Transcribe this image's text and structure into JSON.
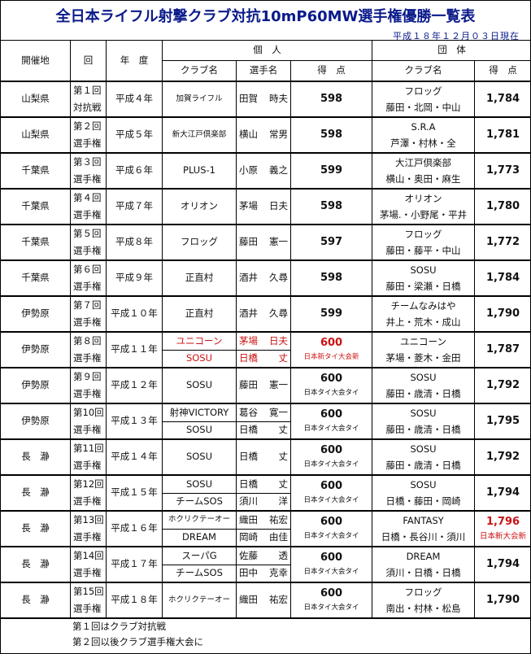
{
  "title": "全日本ライフル射撃クラブ対抗10mP60MW選手権優勝一覧表",
  "as_of": "平成１８年１２月０３日現在",
  "colors": {
    "title": "#0a1a8a",
    "record": "#cc1111"
  },
  "headers": {
    "venue": "開催地",
    "round": "回",
    "year": "年　度",
    "individual": "個　人",
    "team": "団　体",
    "club": "クラブ名",
    "player": "選手名",
    "score": "得　点",
    "team_club": "クラブ名",
    "team_score": "得　点"
  },
  "rows": [
    {
      "venue": "山梨県",
      "round": [
        "第１回",
        "対抗戦"
      ],
      "year": "平成４年",
      "ind": [
        {
          "club": "加賀ライフル",
          "small": true,
          "name": [
            "田賀",
            "時夫"
          ]
        }
      ],
      "score": "598",
      "note": "",
      "team_club": "フロッグ",
      "members": "藤田・北岡・中山",
      "team_score": "1,784"
    },
    {
      "venue": "山梨県",
      "round": [
        "第２回",
        "選手権"
      ],
      "year": "平成５年",
      "ind": [
        {
          "club": "新大江戸倶楽部",
          "small": true,
          "name": [
            "横山",
            "常男"
          ]
        }
      ],
      "score": "598",
      "note": "",
      "team_club": "S.R.A",
      "members": "芦澤・村林・全",
      "team_score": "1,781"
    },
    {
      "venue": "千葉県",
      "round": [
        "第３回",
        "選手権"
      ],
      "year": "平成６年",
      "ind": [
        {
          "club": "PLUS-1",
          "name": [
            "小原",
            "義之"
          ]
        }
      ],
      "score": "599",
      "note": "",
      "team_club": "大江戸倶楽部",
      "members": "横山・奥田・麻生",
      "team_score": "1,773"
    },
    {
      "venue": "千葉県",
      "round": [
        "第４回",
        "選手権"
      ],
      "year": "平成７年",
      "ind": [
        {
          "club": "オリオン",
          "name": [
            "茅場",
            "日夫"
          ]
        }
      ],
      "score": "598",
      "note": "",
      "team_club": "オリオン",
      "members": "茅場.・小野尾・平井",
      "team_score": "1,780"
    },
    {
      "venue": "千葉県",
      "round": [
        "第５回",
        "選手権"
      ],
      "year": "平成８年",
      "ind": [
        {
          "club": "フロッグ",
          "name": [
            "藤田",
            "憲一"
          ]
        }
      ],
      "score": "597",
      "note": "",
      "team_club": "フロッグ",
      "members": "藤田・藤平・中山",
      "team_score": "1,772"
    },
    {
      "venue": "千葉県",
      "round": [
        "第６回",
        "選手権"
      ],
      "year": "平成９年",
      "ind": [
        {
          "club": "正直村",
          "name": [
            "酒井",
            "久尋"
          ]
        }
      ],
      "score": "598",
      "note": "",
      "team_club": "SOSU",
      "members": "藤田・梁瀬・日橋",
      "team_score": "1,784"
    },
    {
      "venue": "伊勢原",
      "round": [
        "第７回",
        "選手権"
      ],
      "year": "平成１０年",
      "ind": [
        {
          "club": "正直村",
          "name": [
            "酒井",
            "久尋"
          ]
        }
      ],
      "score": "599",
      "note": "",
      "team_club": "チームなみはや",
      "members": "井上・荒木・成山",
      "team_score": "1,790"
    },
    {
      "venue": "伊勢原",
      "round": [
        "第８回",
        "選手権"
      ],
      "year": "平成１１年",
      "ind": [
        {
          "club": "ユニコーン",
          "name": [
            "茅場",
            "日夫"
          ]
        },
        {
          "club": "SOSU",
          "name": [
            "日橋",
            "丈"
          ]
        }
      ],
      "score": "600",
      "note": "日本新タイ大会新",
      "ind_record": true,
      "team_club": "ユニコーン",
      "members": "茅場・菱木・金田",
      "team_score": "1,787"
    },
    {
      "venue": "伊勢原",
      "round": [
        "第９回",
        "選手権"
      ],
      "year": "平成１２年",
      "ind": [
        {
          "club": "SOSU",
          "name": [
            "藤田",
            "憲一"
          ]
        }
      ],
      "score": "600",
      "note": "日本タイ大会タイ",
      "team_club": "SOSU",
      "members": "藤田・歳清・日橋",
      "team_score": "1,792"
    },
    {
      "venue": "伊勢原",
      "round": [
        "第10回",
        "選手権"
      ],
      "year": "平成１３年",
      "ind": [
        {
          "club": "射神VICTORY",
          "name": [
            "葛谷",
            "寛一"
          ]
        },
        {
          "club": "SOSU",
          "name": [
            "日橋",
            "丈"
          ]
        }
      ],
      "score": "600",
      "note": "日本タイ大会タイ",
      "team_club": "SOSU",
      "members": "藤田・歳清・日橋",
      "team_score": "1,795"
    },
    {
      "venue": "長　瀞",
      "round": [
        "第11回",
        "選手権"
      ],
      "year": "平成１４年",
      "ind": [
        {
          "club": "SOSU",
          "name": [
            "日橋",
            "丈"
          ]
        }
      ],
      "score": "600",
      "note": "日本タイ大会タイ",
      "team_club": "SOSU",
      "members": "藤田・歳清・日橋",
      "team_score": "1,792"
    },
    {
      "venue": "長　瀞",
      "round": [
        "第12回",
        "選手権"
      ],
      "year": "平成１５年",
      "ind": [
        {
          "club": "SOSU",
          "name": [
            "日橋",
            "丈"
          ]
        },
        {
          "club": "チームSOS",
          "name": [
            "須川",
            "洋"
          ]
        }
      ],
      "score": "600",
      "note": "日本タイ大会タイ",
      "team_club": "SOSU",
      "members": "日橋・藤田・岡崎",
      "team_score": "1,794"
    },
    {
      "venue": "長　瀞",
      "round": [
        "第13回",
        "選手権"
      ],
      "year": "平成１６年",
      "ind": [
        {
          "club": "ホクリクテーオー",
          "small": true,
          "name": [
            "織田",
            "祐宏"
          ]
        },
        {
          "club": "DREAM",
          "name": [
            "岡崎",
            "由佳"
          ]
        }
      ],
      "score": "600",
      "note": "日本タイ大会タイ",
      "team_club": "FANTASY",
      "members": "日橋・長谷川・須川",
      "team_score": "1,796",
      "team_note": "日本新大会新",
      "team_record": true
    },
    {
      "venue": "長　瀞",
      "round": [
        "第14回",
        "選手権"
      ],
      "year": "平成１７年",
      "ind": [
        {
          "club": "スーパG",
          "name": [
            "佐藤",
            "透"
          ]
        },
        {
          "club": "チームSOS",
          "name": [
            "田中",
            "克幸"
          ]
        }
      ],
      "score": "600",
      "note": "日本タイ大会タイ",
      "team_club": "DREAM",
      "members": "須川・日橋・日橋",
      "team_score": "1,794"
    },
    {
      "venue": "長　瀞",
      "round": [
        "第15回",
        "選手権"
      ],
      "year": "平成１８年",
      "ind": [
        {
          "club": "ホクリクテーオー",
          "small": true,
          "name": [
            "織田",
            "祐宏"
          ]
        }
      ],
      "score": "600",
      "note": "日本タイ大会タイ",
      "team_club": "フロッグ",
      "members": "南出・村林・松島",
      "team_score": "1,790"
    }
  ],
  "footnotes": [
    "第１回はクラブ対抗戦",
    "第２回以後クラブ選手権大会に"
  ]
}
